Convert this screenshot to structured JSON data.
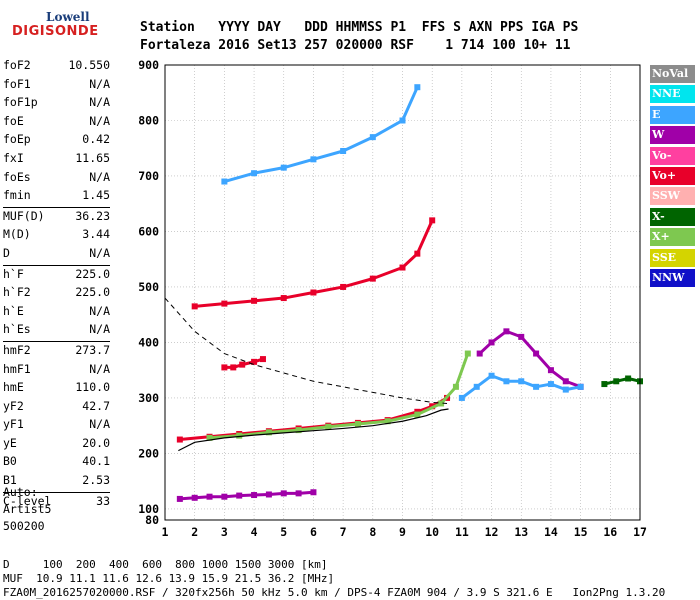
{
  "logo": {
    "line1": "Lowell",
    "line2": "DIGISONDE"
  },
  "header": {
    "line1": "Station   YYYY DAY   DDD HHMMSS P1  FFS S AXN PPS IGA PS",
    "line2": "Fortaleza 2016 Set13 257 020000 RSF    1 714 100 10+ 11"
  },
  "params": [
    [
      {
        "name": "foF2",
        "value": "10.550"
      },
      {
        "name": "foF1",
        "value": "N/A"
      },
      {
        "name": "foF1p",
        "value": "N/A"
      },
      {
        "name": "foE",
        "value": "N/A"
      },
      {
        "name": "foEp",
        "value": "0.42"
      },
      {
        "name": "fxI",
        "value": "11.65"
      },
      {
        "name": "foEs",
        "value": "N/A"
      },
      {
        "name": "fmin",
        "value": "1.45"
      }
    ],
    [
      {
        "name": "MUF(D)",
        "value": "36.23"
      },
      {
        "name": "M(D)",
        "value": "3.44"
      },
      {
        "name": "D",
        "value": "N/A"
      }
    ],
    [
      {
        "name": "h`F",
        "value": "225.0"
      },
      {
        "name": "h`F2",
        "value": "225.0"
      },
      {
        "name": "h`E",
        "value": "N/A"
      },
      {
        "name": "h`Es",
        "value": "N/A"
      }
    ],
    [
      {
        "name": "hmF2",
        "value": "273.7"
      },
      {
        "name": "hmF1",
        "value": "N/A"
      },
      {
        "name": "hmE",
        "value": "110.0"
      },
      {
        "name": "yF2",
        "value": "42.7"
      },
      {
        "name": "yF1",
        "value": "N/A"
      },
      {
        "name": "yE",
        "value": "20.0"
      },
      {
        "name": "B0",
        "value": "40.1"
      },
      {
        "name": "B1",
        "value": "2.53"
      }
    ],
    [
      {
        "name": "C-level",
        "value": "33"
      }
    ]
  ],
  "auto": {
    "line1": "Auto:",
    "line2": "Artist5",
    "line3": "500200"
  },
  "legend": [
    {
      "label": "NoVal",
      "color": "#8c8c8c"
    },
    {
      "label": "NNE",
      "color": "#00e5ee"
    },
    {
      "label": "E",
      "color": "#3da5ff"
    },
    {
      "label": "W",
      "color": "#a000a8"
    },
    {
      "label": "Vo-",
      "color": "#ff40a0"
    },
    {
      "label": "Vo+",
      "color": "#e8002a"
    },
    {
      "label": "SSW",
      "color": "#ffb0b0"
    },
    {
      "label": "X-",
      "color": "#006400"
    },
    {
      "label": "X+",
      "color": "#7ec850"
    },
    {
      "label": "SSE",
      "color": "#d4d400"
    },
    {
      "label": "NNW",
      "color": "#1010c8"
    }
  ],
  "footer": {
    "d_line": "D     100  200  400  600  800 1000 1500 3000 [km]",
    "muf_line": "MUF  10.9 11.1 11.6 12.6 13.9 15.9 21.5 36.2 [MHz]",
    "file_line": "FZA0M_2016257020000.RSF / 320fx256h 50 kHz 5.0 km / DPS-4 FZA0M 904 / 3.9 S 321.6 E   Ion2Png 1.3.20"
  },
  "chart_data": {
    "type": "scatter",
    "xlim": [
      1,
      17
    ],
    "ylim": [
      80,
      900
    ],
    "xticks": [
      1,
      2,
      3,
      4,
      5,
      6,
      7,
      8,
      9,
      10,
      11,
      12,
      13,
      14,
      15,
      16,
      17
    ],
    "yticks": [
      100,
      200,
      300,
      400,
      500,
      600,
      700,
      800,
      900
    ],
    "grid": true,
    "traces": [
      {
        "name": "F2 O-mode echo",
        "color": "#e8002a",
        "x": [
          1.5,
          2.5,
          3.5,
          4.5,
          5.5,
          6.5,
          7.5,
          8.5,
          9.5,
          10.0,
          10.5
        ],
        "y": [
          225,
          230,
          235,
          240,
          245,
          250,
          255,
          260,
          275,
          285,
          300
        ]
      },
      {
        "name": "F2 X-mode echo",
        "color": "#7ec850",
        "x": [
          2.5,
          3.5,
          4.5,
          5.5,
          6.5,
          7.5,
          8.5,
          9.5,
          10.3,
          10.8,
          11.2
        ],
        "y": [
          228,
          232,
          238,
          242,
          248,
          253,
          258,
          270,
          290,
          320,
          380
        ]
      },
      {
        "name": "second hop",
        "color": "#e8002a",
        "x": [
          2.0,
          3.0,
          4.0,
          5.0,
          6.0,
          7.0,
          8.0,
          9.0,
          9.5,
          10.0
        ],
        "y": [
          465,
          470,
          475,
          480,
          490,
          500,
          515,
          535,
          560,
          620
        ]
      },
      {
        "name": "third hop",
        "color": "#3da5ff",
        "x": [
          3.0,
          4.0,
          5.0,
          6.0,
          7.0,
          8.0,
          9.0,
          9.5
        ],
        "y": [
          690,
          705,
          715,
          730,
          745,
          770,
          800,
          860
        ]
      },
      {
        "name": "spread F W",
        "color": "#a000a8",
        "x": [
          11.6,
          12.0,
          12.5,
          13.0,
          13.5,
          14.0,
          14.5,
          15.0
        ],
        "y": [
          380,
          400,
          420,
          410,
          380,
          350,
          330,
          320
        ]
      },
      {
        "name": "spread F E",
        "color": "#3da5ff",
        "x": [
          11.0,
          11.5,
          12.0,
          12.5,
          13.0,
          13.5,
          14.0,
          14.5,
          15.0
        ],
        "y": [
          300,
          320,
          340,
          330,
          330,
          320,
          325,
          315,
          320
        ]
      },
      {
        "name": "X-mode tail",
        "color": "#006400",
        "x": [
          15.8,
          16.2,
          16.6,
          17.0
        ],
        "y": [
          325,
          330,
          335,
          330
        ]
      },
      {
        "name": "spur low",
        "color": "#a000a8",
        "x": [
          1.5,
          2.0,
          2.5,
          3.0,
          3.5,
          4.0,
          4.5,
          5.0,
          5.5,
          6.0
        ],
        "y": [
          118,
          120,
          122,
          122,
          124,
          125,
          126,
          128,
          128,
          130
        ]
      },
      {
        "name": "spur mid",
        "color": "#e8002a",
        "x": [
          3.0,
          3.3,
          3.6,
          4.0,
          4.3
        ],
        "y": [
          355,
          355,
          360,
          365,
          370
        ]
      }
    ],
    "profile_solid": {
      "x": [
        1.45,
        2,
        3,
        4,
        5,
        6,
        7,
        8,
        9,
        9.8,
        10.3,
        10.55
      ],
      "y": [
        205,
        220,
        228,
        233,
        237,
        241,
        245,
        250,
        258,
        268,
        278,
        280
      ]
    },
    "profile_dashed": {
      "x": [
        1.0,
        2.0,
        3.0,
        4.0,
        5.0,
        6.0,
        7.0,
        8.0,
        9.0,
        10.0,
        10.5
      ],
      "y": [
        480,
        420,
        380,
        360,
        345,
        330,
        320,
        310,
        300,
        292,
        290
      ]
    }
  }
}
